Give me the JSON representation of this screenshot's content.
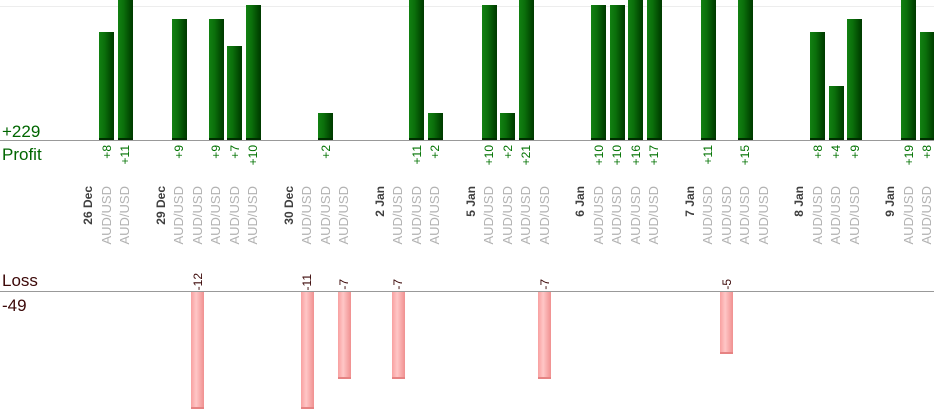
{
  "chart_data": {
    "type": "bar",
    "title": "",
    "xlabel": "",
    "ylabel": "",
    "legend": "none",
    "grid": "single faint top gridline",
    "profit_axis": {
      "label": "Profit",
      "total": "+229",
      "sum": 229
    },
    "loss_axis": {
      "label": "Loss",
      "total": "-49",
      "sum": -49
    },
    "groups": [
      {
        "date": "26 Dec",
        "trades": [
          {
            "symbol": "AUD/USD",
            "value": 8,
            "label": "+8"
          },
          {
            "symbol": "AUD/USD",
            "value": 11,
            "label": "+11"
          }
        ]
      },
      {
        "date": "29 Dec",
        "trades": [
          {
            "symbol": "AUD/USD",
            "value": 9,
            "label": "+9"
          },
          {
            "symbol": "AUD/USD",
            "value": -12,
            "label": "-12"
          },
          {
            "symbol": "AUD/USD",
            "value": 9,
            "label": "+9"
          },
          {
            "symbol": "AUD/USD",
            "value": 7,
            "label": "+7"
          },
          {
            "symbol": "AUD/USD",
            "value": 10,
            "label": "+10"
          }
        ]
      },
      {
        "date": "30 Dec",
        "trades": [
          {
            "symbol": "AUD/USD",
            "value": -11,
            "label": "-11"
          },
          {
            "symbol": "AUD/USD",
            "value": 2,
            "label": "+2"
          },
          {
            "symbol": "AUD/USD",
            "value": -7,
            "label": "-7"
          }
        ]
      },
      {
        "date": "2 Jan",
        "trades": [
          {
            "symbol": "AUD/USD",
            "value": -7,
            "label": "-7"
          },
          {
            "symbol": "AUD/USD",
            "value": 11,
            "label": "+11"
          },
          {
            "symbol": "AUD/USD",
            "value": 2,
            "label": "+2"
          }
        ]
      },
      {
        "date": "5 Jan",
        "trades": [
          {
            "symbol": "AUD/USD",
            "value": 10,
            "label": "+10"
          },
          {
            "symbol": "AUD/USD",
            "value": 2,
            "label": "+2"
          },
          {
            "symbol": "AUD/USD",
            "value": 21,
            "label": "+21"
          },
          {
            "symbol": "AUD/USD",
            "value": -7,
            "label": "-7"
          }
        ]
      },
      {
        "date": "6 Jan",
        "trades": [
          {
            "symbol": "AUD/USD",
            "value": 10,
            "label": "+10"
          },
          {
            "symbol": "AUD/USD",
            "value": 10,
            "label": "+10"
          },
          {
            "symbol": "AUD/USD",
            "value": 16,
            "label": "+16"
          },
          {
            "symbol": "AUD/USD",
            "value": 17,
            "label": "+17"
          }
        ]
      },
      {
        "date": "7 Jan",
        "trades": [
          {
            "symbol": "AUD/USD",
            "value": 11,
            "label": "+11"
          },
          {
            "symbol": "AUD/USD",
            "value": -5,
            "label": "-5"
          },
          {
            "symbol": "AUD/USD",
            "value": 15,
            "label": "+15"
          },
          {
            "symbol": "AUD/USD",
            "value": 0,
            "label": ""
          }
        ]
      },
      {
        "date": "8 Jan",
        "trades": [
          {
            "symbol": "AUD/USD",
            "value": 8,
            "label": "+8"
          },
          {
            "symbol": "AUD/USD",
            "value": 4,
            "label": "+4"
          },
          {
            "symbol": "AUD/USD",
            "value": 9,
            "label": "+9"
          }
        ]
      },
      {
        "date": "9 Jan",
        "trades": [
          {
            "symbol": "AUD/USD",
            "value": 19,
            "label": "+19"
          },
          {
            "symbol": "AUD/USD",
            "value": 8,
            "label": "+8"
          }
        ]
      }
    ],
    "colors": {
      "profit_bar_light": "#128112",
      "profit_bar_dark": "#003a00",
      "loss_bar_light": "#ffc6c6",
      "loss_bar_dark": "#f09090",
      "profit_text": "#007200",
      "profit_text_big": "#006600",
      "loss_text": "#3c0808",
      "date_text": "#3f3f3f",
      "symbol_text": "#b2b2b2",
      "axis_line": "#999999",
      "gridline": "#ededed",
      "background": "#ffffff"
    }
  }
}
